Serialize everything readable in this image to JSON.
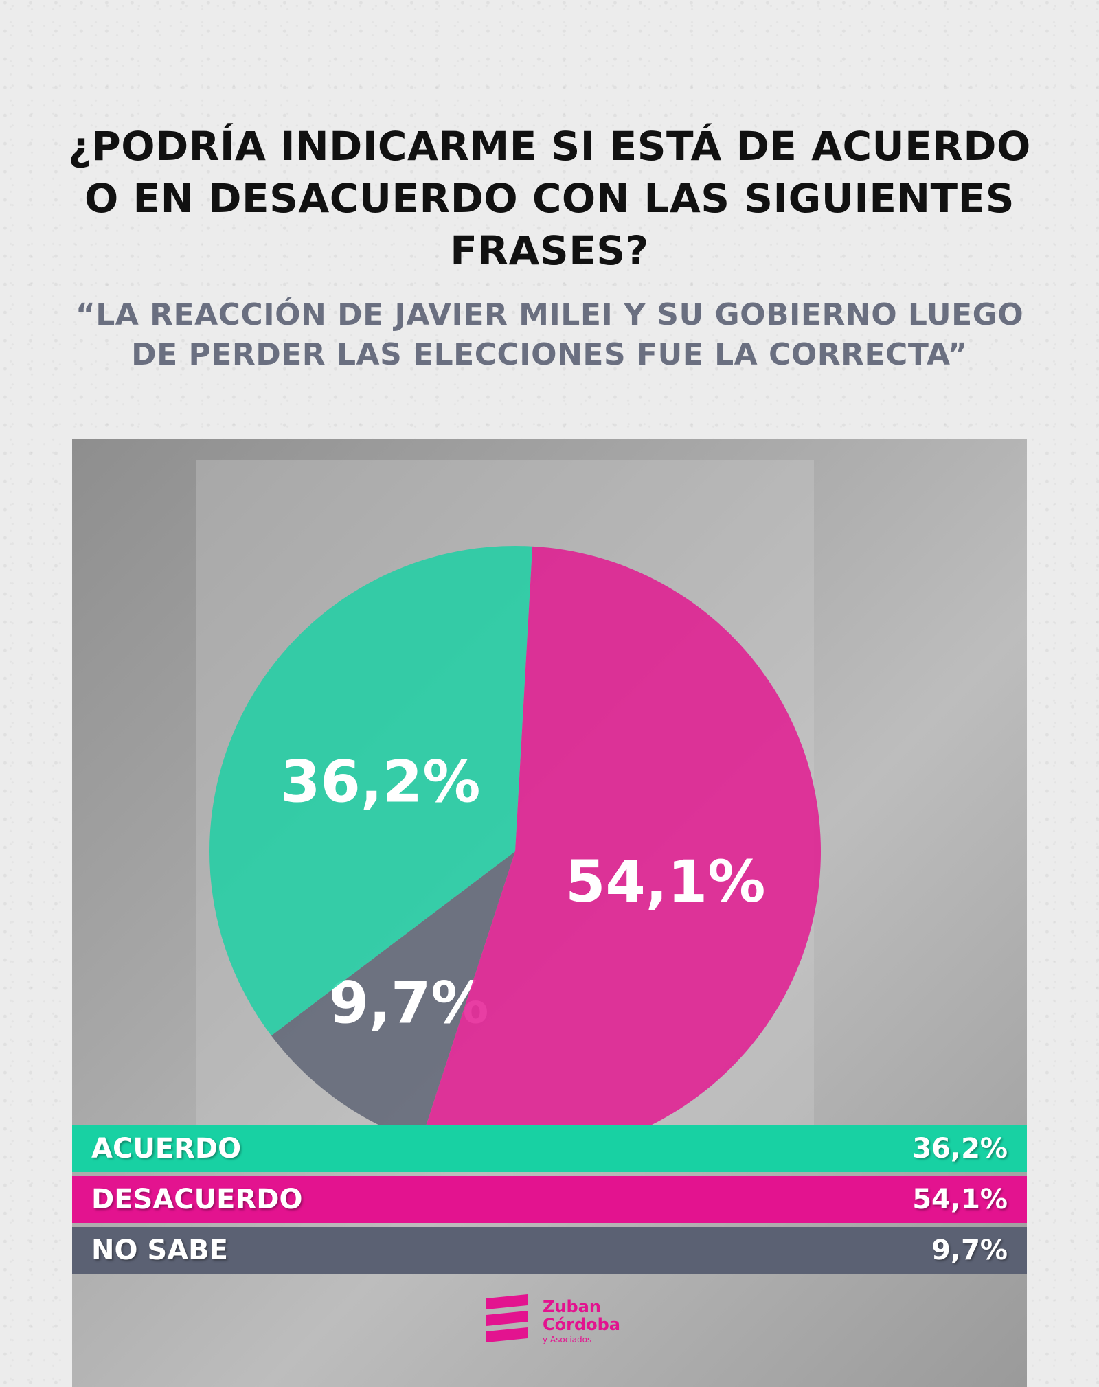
{
  "header": {
    "title": "¿PODRÍA INDICARME SI ESTÁ DE ACUERDO O EN DESACUERDO CON LAS SIGUIENTES FRASES?",
    "subtitle": "“LA REACCIÓN DE JAVIER MILEI Y SU GOBIERNO LUEGO DE PERDER LAS ELECCIONES FUE LA CORRECTA”"
  },
  "chart_data": {
    "type": "pie",
    "title": "",
    "categories": [
      "ACUERDO",
      "DESACUERDO",
      "NO SABE"
    ],
    "values": [
      36.2,
      54.1,
      9.7
    ],
    "labels": [
      "36,2%",
      "54,1%",
      "9,7%"
    ],
    "colors": [
      "#18d1a3",
      "#e3138f",
      "#5b6173"
    ],
    "legend": "bottom"
  },
  "legend": {
    "items": [
      {
        "label": "ACUERDO",
        "value": "36,2%"
      },
      {
        "label": "DESACUERDO",
        "value": "54,1%"
      },
      {
        "label": "NO SABE",
        "value": "9,7%"
      }
    ]
  },
  "logo": {
    "name_line1": "Zuban",
    "name_line2": "Córdoba",
    "sub": "y Asociados",
    "color": "#e3138f"
  }
}
